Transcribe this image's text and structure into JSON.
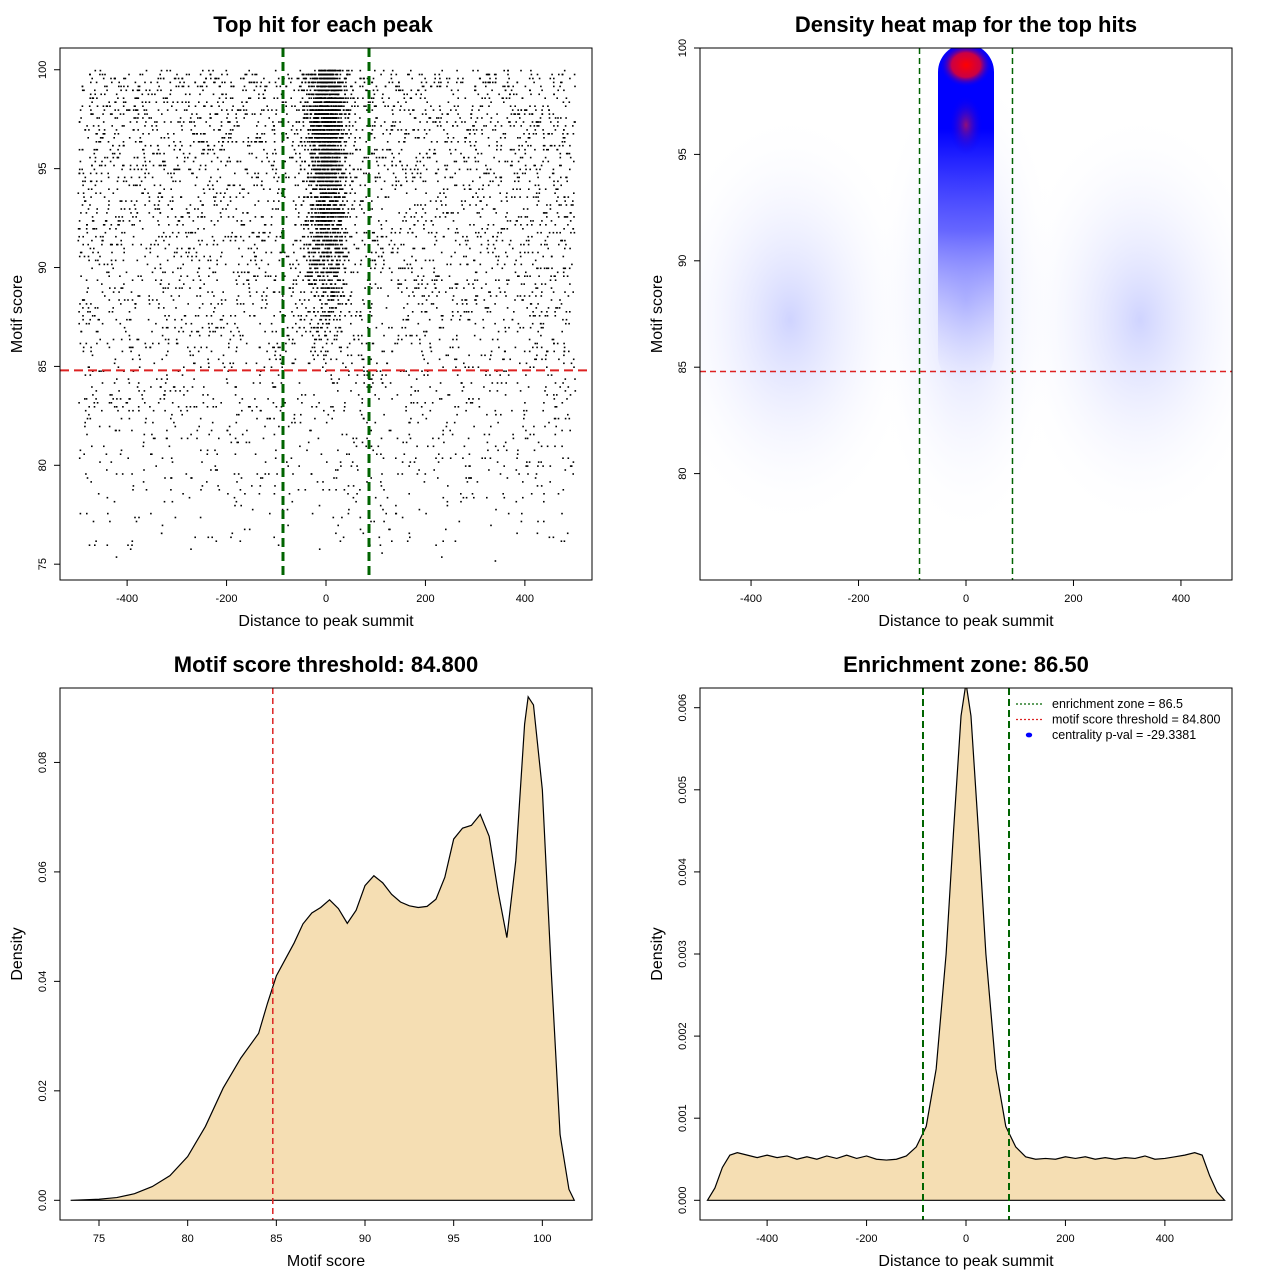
{
  "chart_data": [
    {
      "type": "scatter",
      "title": "Top hit for each peak",
      "xlabel": "Distance to peak summit",
      "ylabel": "Motif score",
      "xlim": [
        -535,
        535
      ],
      "ylim": [
        74.2,
        101.1
      ],
      "xticks": [
        -400,
        -200,
        0,
        200,
        400
      ],
      "yticks": [
        75,
        80,
        85,
        90,
        95,
        100
      ],
      "point_color": "#000000",
      "vlines": {
        "x": [
          -86.5,
          86.5
        ],
        "color": "#006400",
        "style": "dashed"
      },
      "hline": {
        "y": 84.8,
        "color": "#dd2222",
        "style": "dashed"
      },
      "distribution": {
        "x_range": [
          -500,
          500
        ],
        "y_range": [
          75,
          100
        ],
        "central_zone": [
          -86.5,
          86.5
        ],
        "peak_score": 99.2
      }
    },
    {
      "type": "heatmap",
      "title": "Density heat map for the top hits",
      "xlabel": "Distance to peak summit",
      "ylabel": "Motif score",
      "xlim": [
        -495,
        495
      ],
      "ylim": [
        75.0,
        100.0
      ],
      "xticks": [
        -400,
        -200,
        0,
        200,
        400
      ],
      "yticks": [
        80,
        85,
        90,
        95,
        100
      ],
      "colors": [
        "#ffffff",
        "#0000ff",
        "#ff0000"
      ],
      "hotspots": [
        {
          "x": 0,
          "y": 99.2,
          "level": "max"
        },
        {
          "x": 0,
          "y": 96.5,
          "level": "high"
        }
      ],
      "vlines": {
        "x": [
          -86.5,
          86.5
        ],
        "color": "#006400",
        "style": "dashed"
      },
      "hline": {
        "y": 84.8,
        "color": "#dd2222",
        "style": "dashed"
      }
    },
    {
      "type": "area",
      "title": "Motif score threshold: 84.800",
      "xlabel": "Motif score",
      "ylabel": "Density",
      "xlim": [
        72.8,
        102.8
      ],
      "ylim": [
        -0.0036,
        0.0936
      ],
      "xticks": [
        75,
        80,
        85,
        90,
        95,
        100
      ],
      "yticks": [
        0.0,
        0.02,
        0.04,
        0.06,
        0.08
      ],
      "ytick_labels": [
        "0.00",
        "0.02",
        "0.04",
        "0.06",
        "0.08"
      ],
      "fill_color": "#f5deb3",
      "x": [
        73.4,
        75,
        76,
        77,
        78,
        79,
        80,
        81,
        82,
        83,
        84,
        84.5,
        85,
        85.5,
        86,
        86.5,
        87,
        87.5,
        88,
        88.5,
        89,
        89.5,
        90,
        90.5,
        91,
        91.5,
        92,
        92.5,
        93,
        93.5,
        94,
        94.5,
        95,
        95.5,
        96,
        96.5,
        97,
        97.5,
        98,
        98.5,
        99,
        99.2,
        99.5,
        100,
        100.5,
        101,
        101.5,
        101.8
      ],
      "y": [
        0,
        0.0002,
        0.0005,
        0.0012,
        0.0025,
        0.0045,
        0.008,
        0.0135,
        0.0205,
        0.026,
        0.0305,
        0.036,
        0.041,
        0.044,
        0.047,
        0.0505,
        0.0525,
        0.0535,
        0.0549,
        0.0533,
        0.0506,
        0.053,
        0.0575,
        0.0593,
        0.058,
        0.0559,
        0.0545,
        0.0538,
        0.0535,
        0.0537,
        0.055,
        0.059,
        0.066,
        0.068,
        0.0685,
        0.0705,
        0.0665,
        0.0565,
        0.048,
        0.062,
        0.087,
        0.092,
        0.0905,
        0.075,
        0.042,
        0.012,
        0.002,
        0
      ],
      "vline": {
        "x": 84.8,
        "color": "#dd2222",
        "style": "dashed"
      }
    },
    {
      "type": "area",
      "title": "Enrichment zone: 86.50",
      "xlabel": "Distance to peak summit",
      "ylabel": "Density",
      "xlim": [
        -535,
        535
      ],
      "ylim": [
        -0.00024,
        0.00624
      ],
      "xticks": [
        -400,
        -200,
        0,
        200,
        400
      ],
      "yticks": [
        0.0,
        0.001,
        0.002,
        0.003,
        0.004,
        0.005,
        0.006
      ],
      "ytick_labels": [
        "0.000",
        "0.001",
        "0.002",
        "0.003",
        "0.004",
        "0.005",
        "0.006"
      ],
      "fill_color": "#f5deb3",
      "x": [
        -520,
        -505,
        -490,
        -475,
        -460,
        -440,
        -420,
        -400,
        -380,
        -360,
        -340,
        -320,
        -300,
        -280,
        -260,
        -240,
        -220,
        -200,
        -180,
        -160,
        -140,
        -120,
        -100,
        -80,
        -60,
        -40,
        -25,
        -10,
        0,
        10,
        25,
        40,
        60,
        80,
        100,
        120,
        140,
        160,
        180,
        200,
        220,
        240,
        260,
        280,
        300,
        320,
        340,
        360,
        380,
        400,
        420,
        440,
        460,
        475,
        490,
        505,
        520
      ],
      "y": [
        0,
        0.00015,
        0.0004,
        0.00055,
        0.00058,
        0.00055,
        0.00052,
        0.00055,
        0.00052,
        0.00054,
        0.0005,
        0.00053,
        0.0005,
        0.00054,
        0.00051,
        0.00055,
        0.00051,
        0.00054,
        0.0005,
        0.00049,
        0.0005,
        0.00054,
        0.00065,
        0.0009,
        0.0016,
        0.003,
        0.0045,
        0.0059,
        0.0063,
        0.0059,
        0.0045,
        0.003,
        0.0016,
        0.0009,
        0.00065,
        0.00053,
        0.0005,
        0.00051,
        0.0005,
        0.00053,
        0.00051,
        0.00053,
        0.0005,
        0.00052,
        0.0005,
        0.00052,
        0.00051,
        0.00054,
        0.0005,
        0.00051,
        0.00053,
        0.00055,
        0.00058,
        0.00055,
        0.0003,
        0.0001,
        0
      ],
      "vlines": {
        "x": [
          -86.5,
          86.5
        ],
        "color": "#006400",
        "style": "dashed"
      },
      "legend": {
        "position": "top-right",
        "items": [
          {
            "label": "enrichment zone = 86.5",
            "color": "#006400",
            "kind": "dotted-line"
          },
          {
            "label": "motif score threshold = 84.800",
            "color": "#dd2222",
            "kind": "dotted-line"
          },
          {
            "label": "centrality p-val = -29.3381",
            "color": "#0000ff",
            "kind": "point"
          }
        ]
      }
    }
  ]
}
